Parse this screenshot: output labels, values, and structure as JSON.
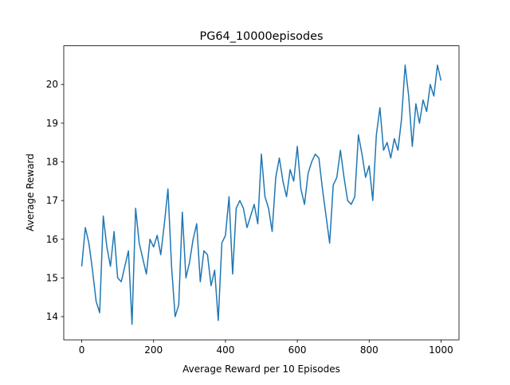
{
  "chart_data": {
    "type": "line",
    "title": "PG64_10000episodes",
    "xlabel": "Average Reward per 10 Episodes",
    "ylabel": "Average Reward",
    "x": [
      0,
      10,
      20,
      30,
      40,
      50,
      60,
      70,
      80,
      90,
      100,
      110,
      120,
      130,
      140,
      150,
      160,
      170,
      180,
      190,
      200,
      210,
      220,
      230,
      240,
      250,
      260,
      270,
      280,
      290,
      300,
      310,
      320,
      330,
      340,
      350,
      360,
      370,
      380,
      390,
      400,
      410,
      420,
      430,
      440,
      450,
      460,
      470,
      480,
      490,
      500,
      510,
      520,
      530,
      540,
      550,
      560,
      570,
      580,
      590,
      600,
      610,
      620,
      630,
      640,
      650,
      660,
      670,
      680,
      690,
      700,
      710,
      720,
      730,
      740,
      750,
      760,
      770,
      780,
      790,
      800,
      810,
      820,
      830,
      840,
      850,
      860,
      870,
      880,
      890,
      900,
      910,
      920,
      930,
      940,
      950,
      960,
      970,
      980,
      990,
      1000
    ],
    "series": [
      {
        "name": "Average Reward",
        "color": "#1f77b4",
        "values": [
          15.3,
          16.3,
          15.9,
          15.2,
          14.4,
          14.1,
          16.6,
          15.8,
          15.3,
          16.2,
          15.0,
          14.9,
          15.3,
          15.7,
          13.8,
          16.8,
          15.9,
          15.5,
          15.1,
          16.0,
          15.8,
          16.1,
          15.6,
          16.4,
          17.3,
          15.3,
          14.0,
          14.3,
          16.7,
          15.0,
          15.4,
          16.0,
          16.4,
          14.9,
          15.7,
          15.6,
          14.8,
          15.2,
          13.9,
          15.9,
          16.1,
          17.1,
          15.1,
          16.8,
          17.0,
          16.8,
          16.3,
          16.6,
          16.9,
          16.4,
          18.2,
          17.1,
          16.8,
          16.2,
          17.6,
          18.1,
          17.5,
          17.1,
          17.8,
          17.5,
          18.4,
          17.3,
          16.9,
          17.7,
          18.0,
          18.2,
          18.1,
          17.3,
          16.6,
          15.9,
          17.4,
          17.6,
          18.3,
          17.6,
          17.0,
          16.9,
          17.1,
          18.7,
          18.2,
          17.6,
          17.9,
          17.0,
          18.7,
          19.4,
          18.3,
          18.5,
          18.1,
          18.6,
          18.3,
          19.1,
          20.5,
          19.7,
          18.4,
          19.5,
          19.0,
          19.6,
          19.3,
          20.0,
          19.7,
          20.5,
          20.1
        ]
      }
    ],
    "xlim": [
      -50,
      1050
    ],
    "ylim": [
      13.4,
      21.0
    ],
    "xticks": [
      0,
      200,
      400,
      600,
      800,
      1000
    ],
    "yticks": [
      14,
      15,
      16,
      17,
      18,
      19,
      20
    ]
  }
}
